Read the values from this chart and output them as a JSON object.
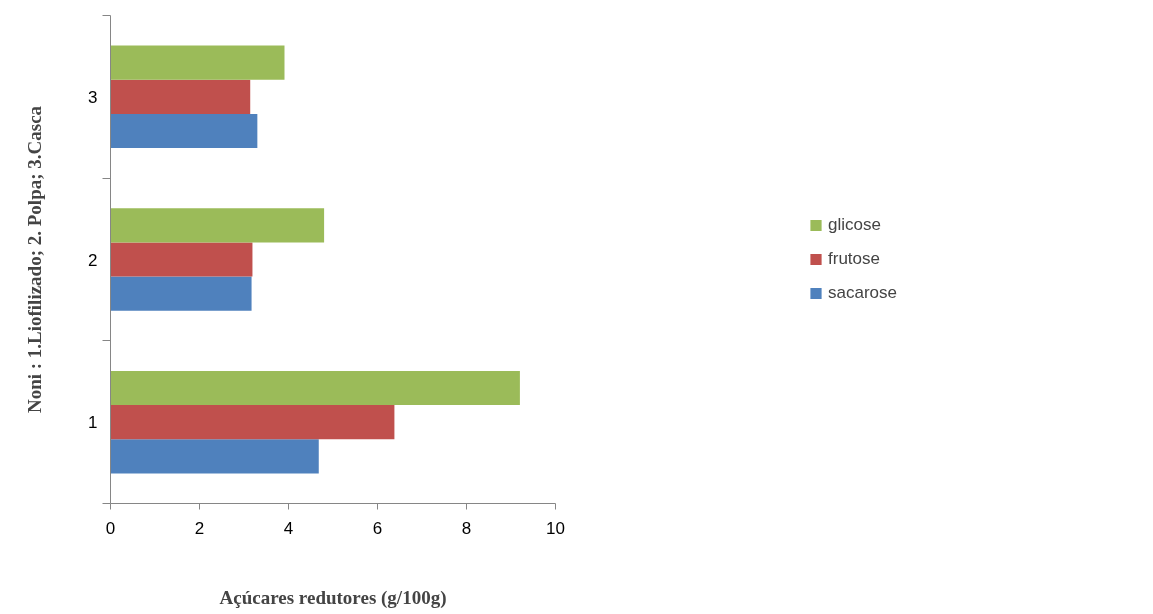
{
  "chart_data": {
    "type": "bar",
    "orientation": "horizontal",
    "xlabel": "Açúcares redutores (g/100g)",
    "ylabel": "Noni : 1.Liofilizado; 2. Polpa; 3.Casca",
    "categories": [
      "3",
      "2",
      "1"
    ],
    "series": [
      {
        "name": "sacarose",
        "color": "#4f81bd",
        "values": [
          3.3,
          3.17,
          4.68
        ]
      },
      {
        "name": "frutose",
        "color": "#c0504d",
        "values": [
          3.14,
          3.19,
          6.38
        ]
      },
      {
        "name": "glicose",
        "color": "#9bbb59",
        "values": [
          3.91,
          4.8,
          9.2
        ]
      }
    ],
    "xlim": [
      0,
      10
    ],
    "xticks": [
      0,
      2,
      4,
      6,
      8,
      10
    ],
    "grid": false,
    "legend": "right"
  }
}
